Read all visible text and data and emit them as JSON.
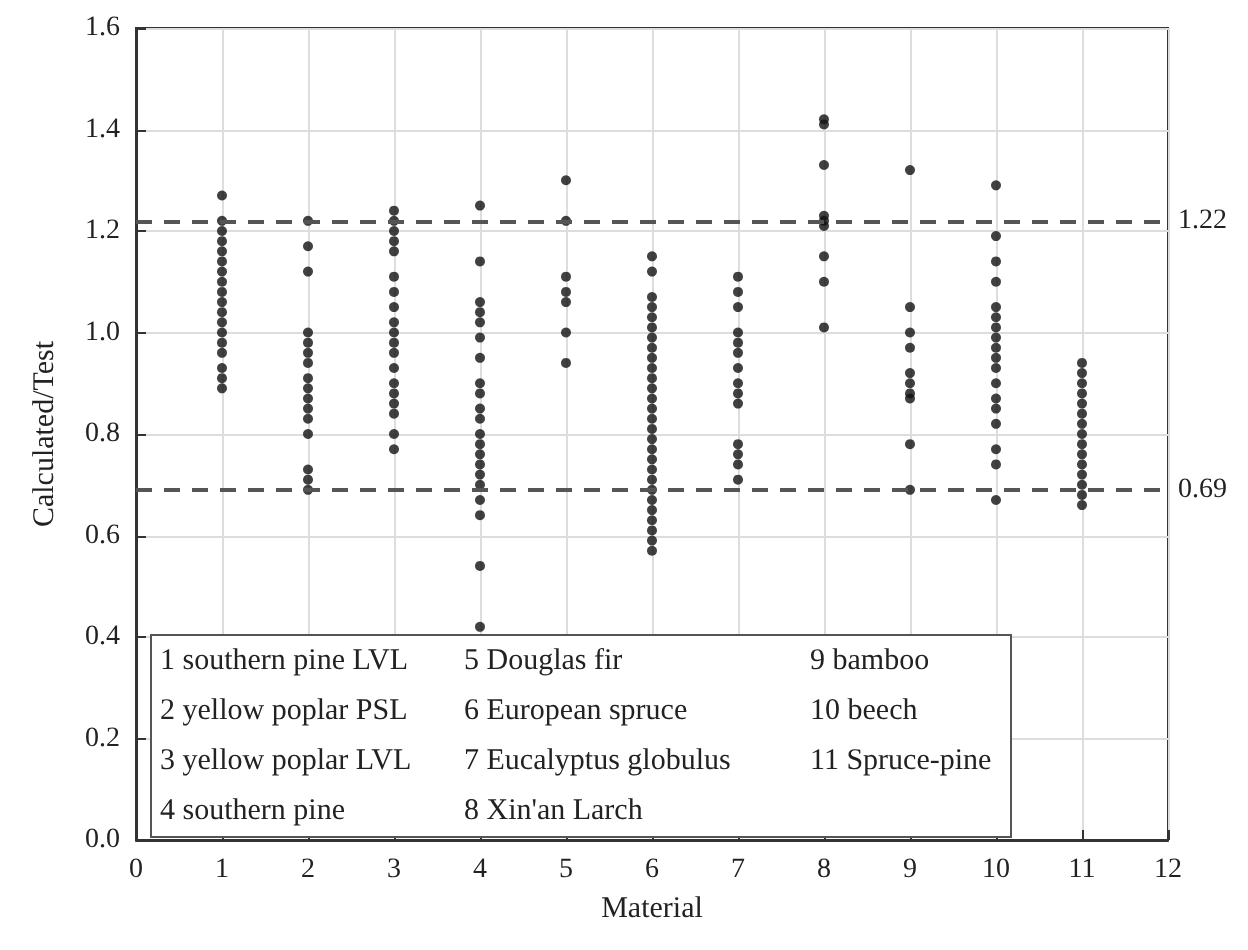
{
  "chart_data": {
    "type": "scatter",
    "xlabel": "Material",
    "ylabel": "Calculated/Test",
    "x": [
      1,
      1,
      1,
      1,
      1,
      1,
      1,
      1,
      1,
      1,
      1,
      1,
      1,
      1,
      1,
      1,
      1,
      1,
      2,
      2,
      2,
      2,
      2,
      2,
      2,
      2,
      2,
      2,
      2,
      2,
      2,
      2,
      2,
      2,
      3,
      3,
      3,
      3,
      3,
      3,
      3,
      3,
      3,
      3,
      3,
      3,
      3,
      3,
      3,
      3,
      3,
      3,
      3,
      4,
      4,
      4,
      4,
      4,
      4,
      4,
      4,
      4,
      4,
      4,
      4,
      4,
      4,
      4,
      4,
      4,
      4,
      4,
      4,
      4,
      5,
      5,
      5,
      5,
      5,
      5,
      5,
      6,
      6,
      6,
      6,
      6,
      6,
      6,
      6,
      6,
      6,
      6,
      6,
      6,
      6,
      6,
      6,
      6,
      6,
      6,
      6,
      6,
      6,
      6,
      6,
      6,
      6,
      6,
      6,
      7,
      7,
      7,
      7,
      7,
      7,
      7,
      7,
      7,
      7,
      7,
      7,
      7,
      7,
      8,
      8,
      8,
      8,
      8,
      8,
      8,
      8,
      8,
      9,
      9,
      9,
      9,
      9,
      9,
      9,
      9,
      9,
      9,
      10,
      10,
      10,
      10,
      10,
      10,
      10,
      10,
      10,
      10,
      10,
      10,
      10,
      10,
      10,
      10,
      10,
      10,
      11,
      11,
      11,
      11,
      11,
      11,
      11,
      11,
      11,
      11,
      11,
      11,
      11,
      11,
      11
    ],
    "series": [
      {
        "color": "#111111",
        "values": [
          1.27,
          1.22,
          1.2,
          1.18,
          1.16,
          1.14,
          1.12,
          1.1,
          1.08,
          1.06,
          1.04,
          1.02,
          1.0,
          0.98,
          0.96,
          0.93,
          0.91,
          0.89,
          1.22,
          1.17,
          1.12,
          1.0,
          0.98,
          0.96,
          0.94,
          0.91,
          0.89,
          0.87,
          0.85,
          0.83,
          0.8,
          0.73,
          0.71,
          0.69,
          1.24,
          1.22,
          1.2,
          1.18,
          1.16,
          1.11,
          1.08,
          1.05,
          1.02,
          1.0,
          0.98,
          0.96,
          0.93,
          0.9,
          0.88,
          0.86,
          0.84,
          0.8,
          0.77,
          1.25,
          1.14,
          1.06,
          1.04,
          1.02,
          0.99,
          0.95,
          0.9,
          0.88,
          0.85,
          0.83,
          0.8,
          0.78,
          0.76,
          0.74,
          0.72,
          0.7,
          0.67,
          0.64,
          0.54,
          0.42,
          1.3,
          1.22,
          1.11,
          1.08,
          1.06,
          1.0,
          0.94,
          1.15,
          1.12,
          1.07,
          1.05,
          1.03,
          1.01,
          0.99,
          0.97,
          0.95,
          0.93,
          0.91,
          0.89,
          0.87,
          0.85,
          0.83,
          0.81,
          0.79,
          0.77,
          0.75,
          0.73,
          0.71,
          0.69,
          0.67,
          0.65,
          0.63,
          0.61,
          0.59,
          0.57,
          1.11,
          1.08,
          1.05,
          1.0,
          0.98,
          0.96,
          0.93,
          0.9,
          0.88,
          0.86,
          0.78,
          0.76,
          0.74,
          0.71,
          1.42,
          1.41,
          1.33,
          1.23,
          1.22,
          1.21,
          1.15,
          1.1,
          1.01,
          1.32,
          1.05,
          1.0,
          0.97,
          0.92,
          0.9,
          0.88,
          0.87,
          0.78,
          0.69,
          1.29,
          1.19,
          1.14,
          1.1,
          1.05,
          1.03,
          1.01,
          0.99,
          0.97,
          0.95,
          0.93,
          0.9,
          0.87,
          0.85,
          0.82,
          0.77,
          0.74,
          0.67,
          0.94,
          0.92,
          0.9,
          0.88,
          0.86,
          0.84,
          0.82,
          0.8,
          0.78,
          0.76,
          0.74,
          0.72,
          0.7,
          0.68,
          0.66
        ]
      }
    ],
    "xlim": [
      0,
      12
    ],
    "xticks": [
      0,
      1,
      2,
      3,
      4,
      5,
      6,
      7,
      8,
      9,
      10,
      11,
      12
    ],
    "ylim": [
      0,
      1.6
    ],
    "yticks": [
      {
        "value": 0,
        "label": "0.0"
      },
      {
        "value": 0.2,
        "label": "0.2"
      },
      {
        "value": 0.4,
        "label": "0.4"
      },
      {
        "value": 0.6,
        "label": "0.6"
      },
      {
        "value": 0.8,
        "label": "0.8"
      },
      {
        "value": 1,
        "label": "1.0"
      },
      {
        "value": 1.2,
        "label": "1.2"
      },
      {
        "value": 1.4,
        "label": "1.4"
      },
      {
        "value": 1.6,
        "label": "1.6"
      }
    ],
    "ref_lines": [
      {
        "axis": "y",
        "value": 1.22,
        "label": "1.22",
        "color": "#555555",
        "line_style": "dashed"
      },
      {
        "axis": "y",
        "value": 0.69,
        "label": "0.69",
        "color": "#555555",
        "line_style": "dashed"
      }
    ],
    "annotations": [
      "1 southern pine LVL",
      "2 yellow poplar PSL",
      "3 yellow poplar LVL",
      "4 southern pine",
      "5 Douglas fir",
      "6 European spruce",
      "7 Eucalyptus globulus",
      "8 Xin'an Larch",
      "9 bamboo",
      "10 beech",
      "11 Spruce-pine"
    ],
    "grid": true,
    "marker": "circle"
  }
}
